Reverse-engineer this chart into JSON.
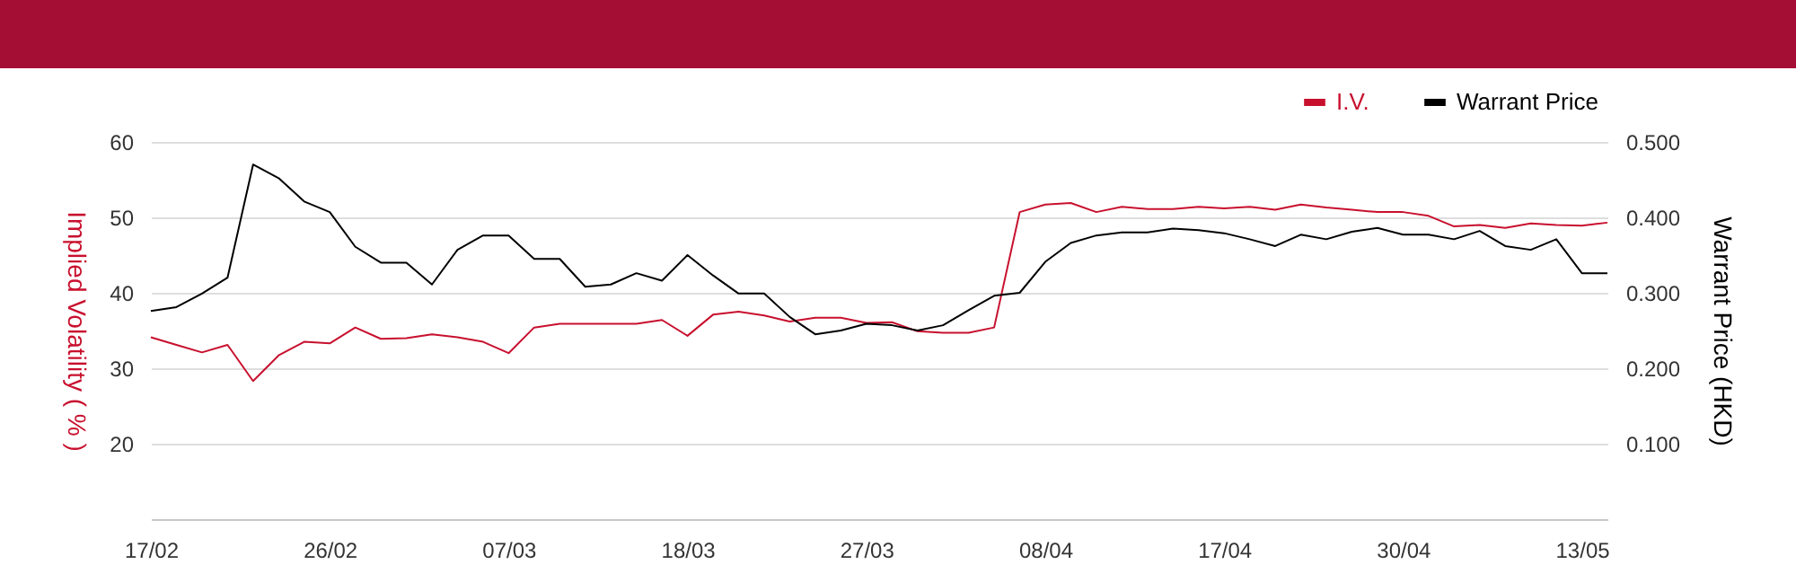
{
  "chart_data": {
    "type": "line",
    "categories": [
      "17/02",
      null,
      null,
      null,
      null,
      null,
      null,
      "26/02",
      null,
      null,
      null,
      null,
      null,
      null,
      "07/03",
      null,
      null,
      null,
      null,
      null,
      null,
      "18/03",
      null,
      null,
      null,
      null,
      null,
      null,
      "27/03",
      null,
      null,
      null,
      null,
      null,
      null,
      "08/04",
      null,
      null,
      null,
      null,
      null,
      null,
      "17/04",
      null,
      null,
      null,
      null,
      null,
      null,
      "30/04",
      null,
      null,
      null,
      null,
      null,
      null,
      "13/05",
      null
    ],
    "series": [
      {
        "name": "I.V.",
        "color": "#c8102e",
        "values": [
          34.1,
          33.1,
          32.1,
          33.1,
          28.3,
          31.7,
          33.5,
          33.3,
          35.4,
          33.9,
          34.0,
          34.5,
          34.1,
          33.5,
          32.0,
          35.4,
          35.9,
          35.9,
          35.9,
          35.9,
          36.4,
          34.3,
          37.1,
          37.5,
          37.0,
          36.2,
          36.7,
          36.7,
          36.0,
          36.1,
          34.9,
          34.7,
          34.7,
          35.4,
          50.7,
          51.7,
          51.9,
          50.7,
          51.4,
          51.1,
          51.1,
          51.4,
          51.2,
          51.4,
          51.0,
          51.7,
          51.3,
          51.0,
          50.7,
          50.7,
          50.2,
          48.8,
          49.0,
          48.6,
          49.2,
          49.0,
          48.9,
          49.3
        ]
      },
      {
        "name": "Warrant Price",
        "color": "#000000",
        "axis": "y2",
        "values": [
          0.276,
          0.281,
          0.299,
          0.32,
          0.47,
          0.452,
          0.421,
          0.407,
          0.361,
          0.34,
          0.34,
          0.311,
          0.357,
          0.376,
          0.376,
          0.345,
          0.345,
          0.308,
          0.311,
          0.326,
          0.316,
          0.35,
          0.323,
          0.299,
          0.299,
          0.268,
          0.245,
          0.25,
          0.259,
          0.257,
          0.25,
          0.257,
          0.277,
          0.296,
          0.3,
          0.341,
          0.366,
          0.376,
          0.38,
          0.38,
          0.385,
          0.383,
          0.379,
          0.371,
          0.362,
          0.377,
          0.371,
          0.381,
          0.386,
          0.377,
          0.377,
          0.371,
          0.382,
          0.362,
          0.357,
          0.371,
          0.326,
          0.326
        ]
      }
    ],
    "ylabel": "Implied Volatility ( % )",
    "y2label": "Warrant Price (HKD)",
    "ylim": [
      10,
      60
    ],
    "yticks": [
      20,
      30,
      40,
      50,
      60
    ],
    "y2lim": [
      0,
      0.5
    ],
    "y2ticks": [
      {
        "value": 0.1,
        "label": "0.100"
      },
      {
        "value": 0.2,
        "label": "0.200"
      },
      {
        "value": 0.3,
        "label": "0.300"
      },
      {
        "value": 0.4,
        "label": "0.400"
      },
      {
        "value": 0.5,
        "label": "0.500"
      }
    ],
    "grid": "y",
    "legend": "top right",
    "marker": "none",
    "line_style": "solid"
  }
}
